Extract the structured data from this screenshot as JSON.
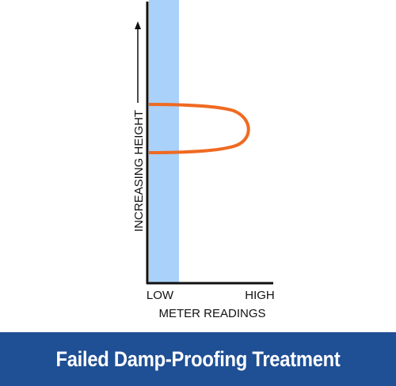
{
  "diagram": {
    "y_axis_label": "INCREASING HEIGHT",
    "x_axis_low": "LOW",
    "x_axis_high": "HIGH",
    "x_axis_label": "METER READINGS"
  },
  "banner": {
    "title": "Failed Damp-Proofing Treatment"
  }
}
